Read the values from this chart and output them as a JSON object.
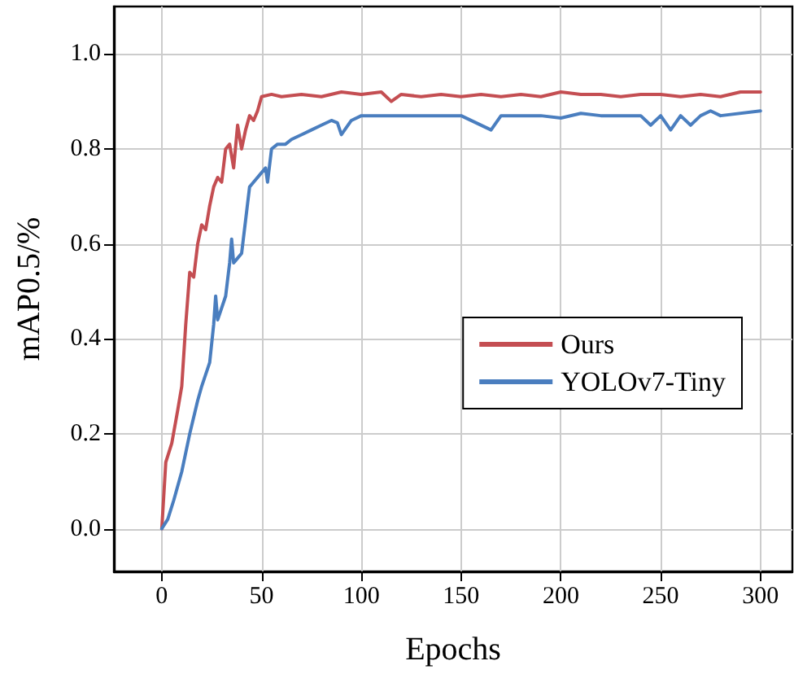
{
  "chart_data": {
    "type": "line",
    "xlabel": "Epochs",
    "ylabel": "mAP0.5/%",
    "xlim": [
      -24,
      316
    ],
    "ylim": [
      -0.09,
      1.1
    ],
    "xticks": [
      0,
      50,
      100,
      150,
      200,
      250,
      300
    ],
    "yticks": [
      {
        "value": 0,
        "label": "0.0"
      },
      0.2,
      0.4,
      0.6,
      0.8,
      {
        "value": 1,
        "label": "1.0"
      }
    ],
    "grid": true,
    "legend": "right",
    "marker": "none",
    "line_style": "solid",
    "series": [
      {
        "name": "Ours",
        "color": "#c44e52",
        "x": [
          0,
          2,
          5,
          8,
          10,
          12,
          14,
          16,
          18,
          20,
          22,
          24,
          26,
          28,
          30,
          32,
          34,
          36,
          38,
          40,
          42,
          44,
          46,
          48,
          50,
          55,
          60,
          70,
          80,
          90,
          100,
          110,
          115,
          120,
          130,
          140,
          150,
          160,
          170,
          180,
          190,
          200,
          210,
          220,
          230,
          240,
          250,
          260,
          270,
          280,
          290,
          300
        ],
        "values": [
          0.0,
          0.14,
          0.18,
          0.25,
          0.3,
          0.43,
          0.54,
          0.53,
          0.6,
          0.64,
          0.63,
          0.68,
          0.72,
          0.74,
          0.73,
          0.8,
          0.81,
          0.76,
          0.85,
          0.8,
          0.84,
          0.87,
          0.86,
          0.88,
          0.91,
          0.915,
          0.91,
          0.915,
          0.91,
          0.92,
          0.915,
          0.92,
          0.9,
          0.915,
          0.91,
          0.915,
          0.91,
          0.915,
          0.91,
          0.915,
          0.91,
          0.92,
          0.915,
          0.915,
          0.91,
          0.915,
          0.915,
          0.91,
          0.915,
          0.91,
          0.92,
          0.92
        ]
      },
      {
        "name": "YOLOv7-Tiny",
        "color": "#4a7ebf",
        "x": [
          0,
          3,
          6,
          10,
          14,
          18,
          20,
          24,
          26,
          27,
          28,
          32,
          34,
          35,
          36,
          38,
          40,
          42,
          44,
          46,
          50,
          52,
          53,
          55,
          58,
          62,
          65,
          70,
          75,
          80,
          85,
          88,
          90,
          95,
          100,
          120,
          130,
          145,
          150,
          165,
          170,
          180,
          190,
          200,
          210,
          220,
          240,
          245,
          250,
          255,
          260,
          265,
          270,
          275,
          280,
          300
        ],
        "values": [
          0.0,
          0.02,
          0.06,
          0.12,
          0.2,
          0.27,
          0.3,
          0.35,
          0.43,
          0.49,
          0.44,
          0.49,
          0.56,
          0.61,
          0.56,
          0.57,
          0.58,
          0.65,
          0.72,
          0.73,
          0.75,
          0.76,
          0.73,
          0.8,
          0.81,
          0.81,
          0.82,
          0.83,
          0.84,
          0.85,
          0.86,
          0.855,
          0.83,
          0.86,
          0.87,
          0.87,
          0.87,
          0.87,
          0.87,
          0.84,
          0.87,
          0.87,
          0.87,
          0.865,
          0.875,
          0.87,
          0.87,
          0.85,
          0.87,
          0.84,
          0.87,
          0.85,
          0.87,
          0.88,
          0.87,
          0.88
        ]
      }
    ]
  }
}
